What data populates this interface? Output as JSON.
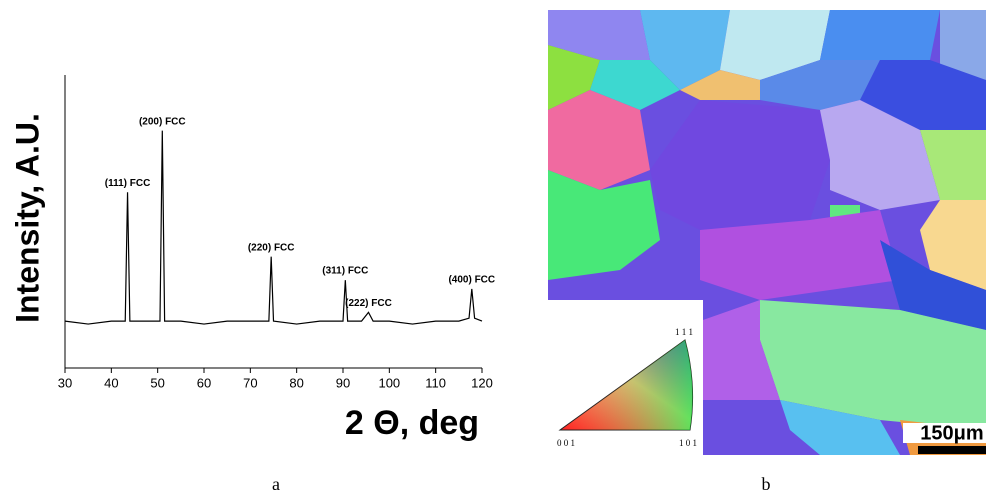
{
  "chart_data": {
    "type": "line",
    "x": [
      30,
      35,
      40,
      43,
      43.5,
      44,
      47,
      50.5,
      51,
      51.5,
      55,
      60,
      65,
      70,
      74,
      74.5,
      75,
      80,
      85,
      90,
      90.5,
      91,
      94,
      95.5,
      96.5,
      100,
      105,
      110,
      115,
      117.2,
      117.8,
      118.4,
      120
    ],
    "values": [
      16,
      15,
      16,
      16,
      60,
      16,
      16,
      16,
      81,
      16,
      16,
      15,
      16,
      16,
      16,
      38,
      16,
      15,
      16,
      16,
      30,
      16,
      16,
      19,
      16,
      16,
      15,
      16,
      16,
      17,
      27,
      17,
      16
    ],
    "color": "#000000",
    "xlim": [
      30,
      120
    ],
    "xticks": [
      30,
      40,
      50,
      60,
      70,
      80,
      90,
      100,
      110,
      120
    ],
    "ylim": [
      0,
      100
    ],
    "xlabel": "2 Θ, deg",
    "ylabel": "Intensity, A.U.",
    "annotations": [
      "(111) FCC",
      "(200) FCC",
      "(220) FCC",
      "(311) FCC",
      "(222) FCC",
      "(400) FCC"
    ]
  },
  "captions": [
    "a",
    "b"
  ],
  "ebsd": {
    "ipf_labels": [
      "1 1 1",
      "0 0 1",
      "1 0 1"
    ],
    "scale_bar": "150μm"
  }
}
